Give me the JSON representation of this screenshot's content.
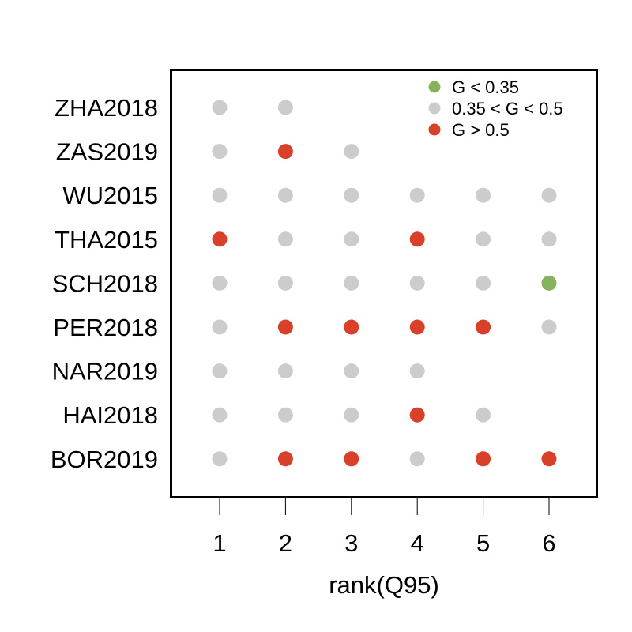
{
  "chart_data": {
    "type": "scatter",
    "xlabel": "rank(Q95)",
    "x_ticks": [
      "1",
      "2",
      "3",
      "4",
      "5",
      "6"
    ],
    "xlim": [
      0.3,
      6.75
    ],
    "categories": [
      "ZHA2018",
      "ZAS2019",
      "WU2015",
      "THA2015",
      "SCH2018",
      "PER2018",
      "NAR2019",
      "HAI2018",
      "BOR2019"
    ],
    "legend": {
      "position": "top-right",
      "entries": [
        {
          "key": "low",
          "label": "G < 0.35",
          "color": "#86b25b"
        },
        {
          "key": "mid",
          "label": "0.35 < G < 0.5",
          "color": "#cccccc"
        },
        {
          "key": "high",
          "label": "G > 0.5",
          "color": "#d9402a"
        }
      ]
    },
    "points": [
      {
        "study": "ZHA2018",
        "ranks": [
          "mid",
          "mid"
        ]
      },
      {
        "study": "ZAS2019",
        "ranks": [
          "mid",
          "high",
          "mid"
        ]
      },
      {
        "study": "WU2015",
        "ranks": [
          "mid",
          "mid",
          "mid",
          "mid",
          "mid",
          "mid"
        ]
      },
      {
        "study": "THA2015",
        "ranks": [
          "high",
          "mid",
          "mid",
          "high",
          "mid",
          "mid"
        ]
      },
      {
        "study": "SCH2018",
        "ranks": [
          "mid",
          "mid",
          "mid",
          "mid",
          "mid",
          "low"
        ]
      },
      {
        "study": "PER2018",
        "ranks": [
          "mid",
          "high",
          "high",
          "high",
          "high",
          "mid"
        ]
      },
      {
        "study": "NAR2019",
        "ranks": [
          "mid",
          "mid",
          "mid",
          "mid"
        ]
      },
      {
        "study": "HAI2018",
        "ranks": [
          "mid",
          "mid",
          "mid",
          "high",
          "mid"
        ]
      },
      {
        "study": "BOR2019",
        "ranks": [
          "mid",
          "high",
          "high",
          "mid",
          "high",
          "high"
        ]
      }
    ]
  }
}
